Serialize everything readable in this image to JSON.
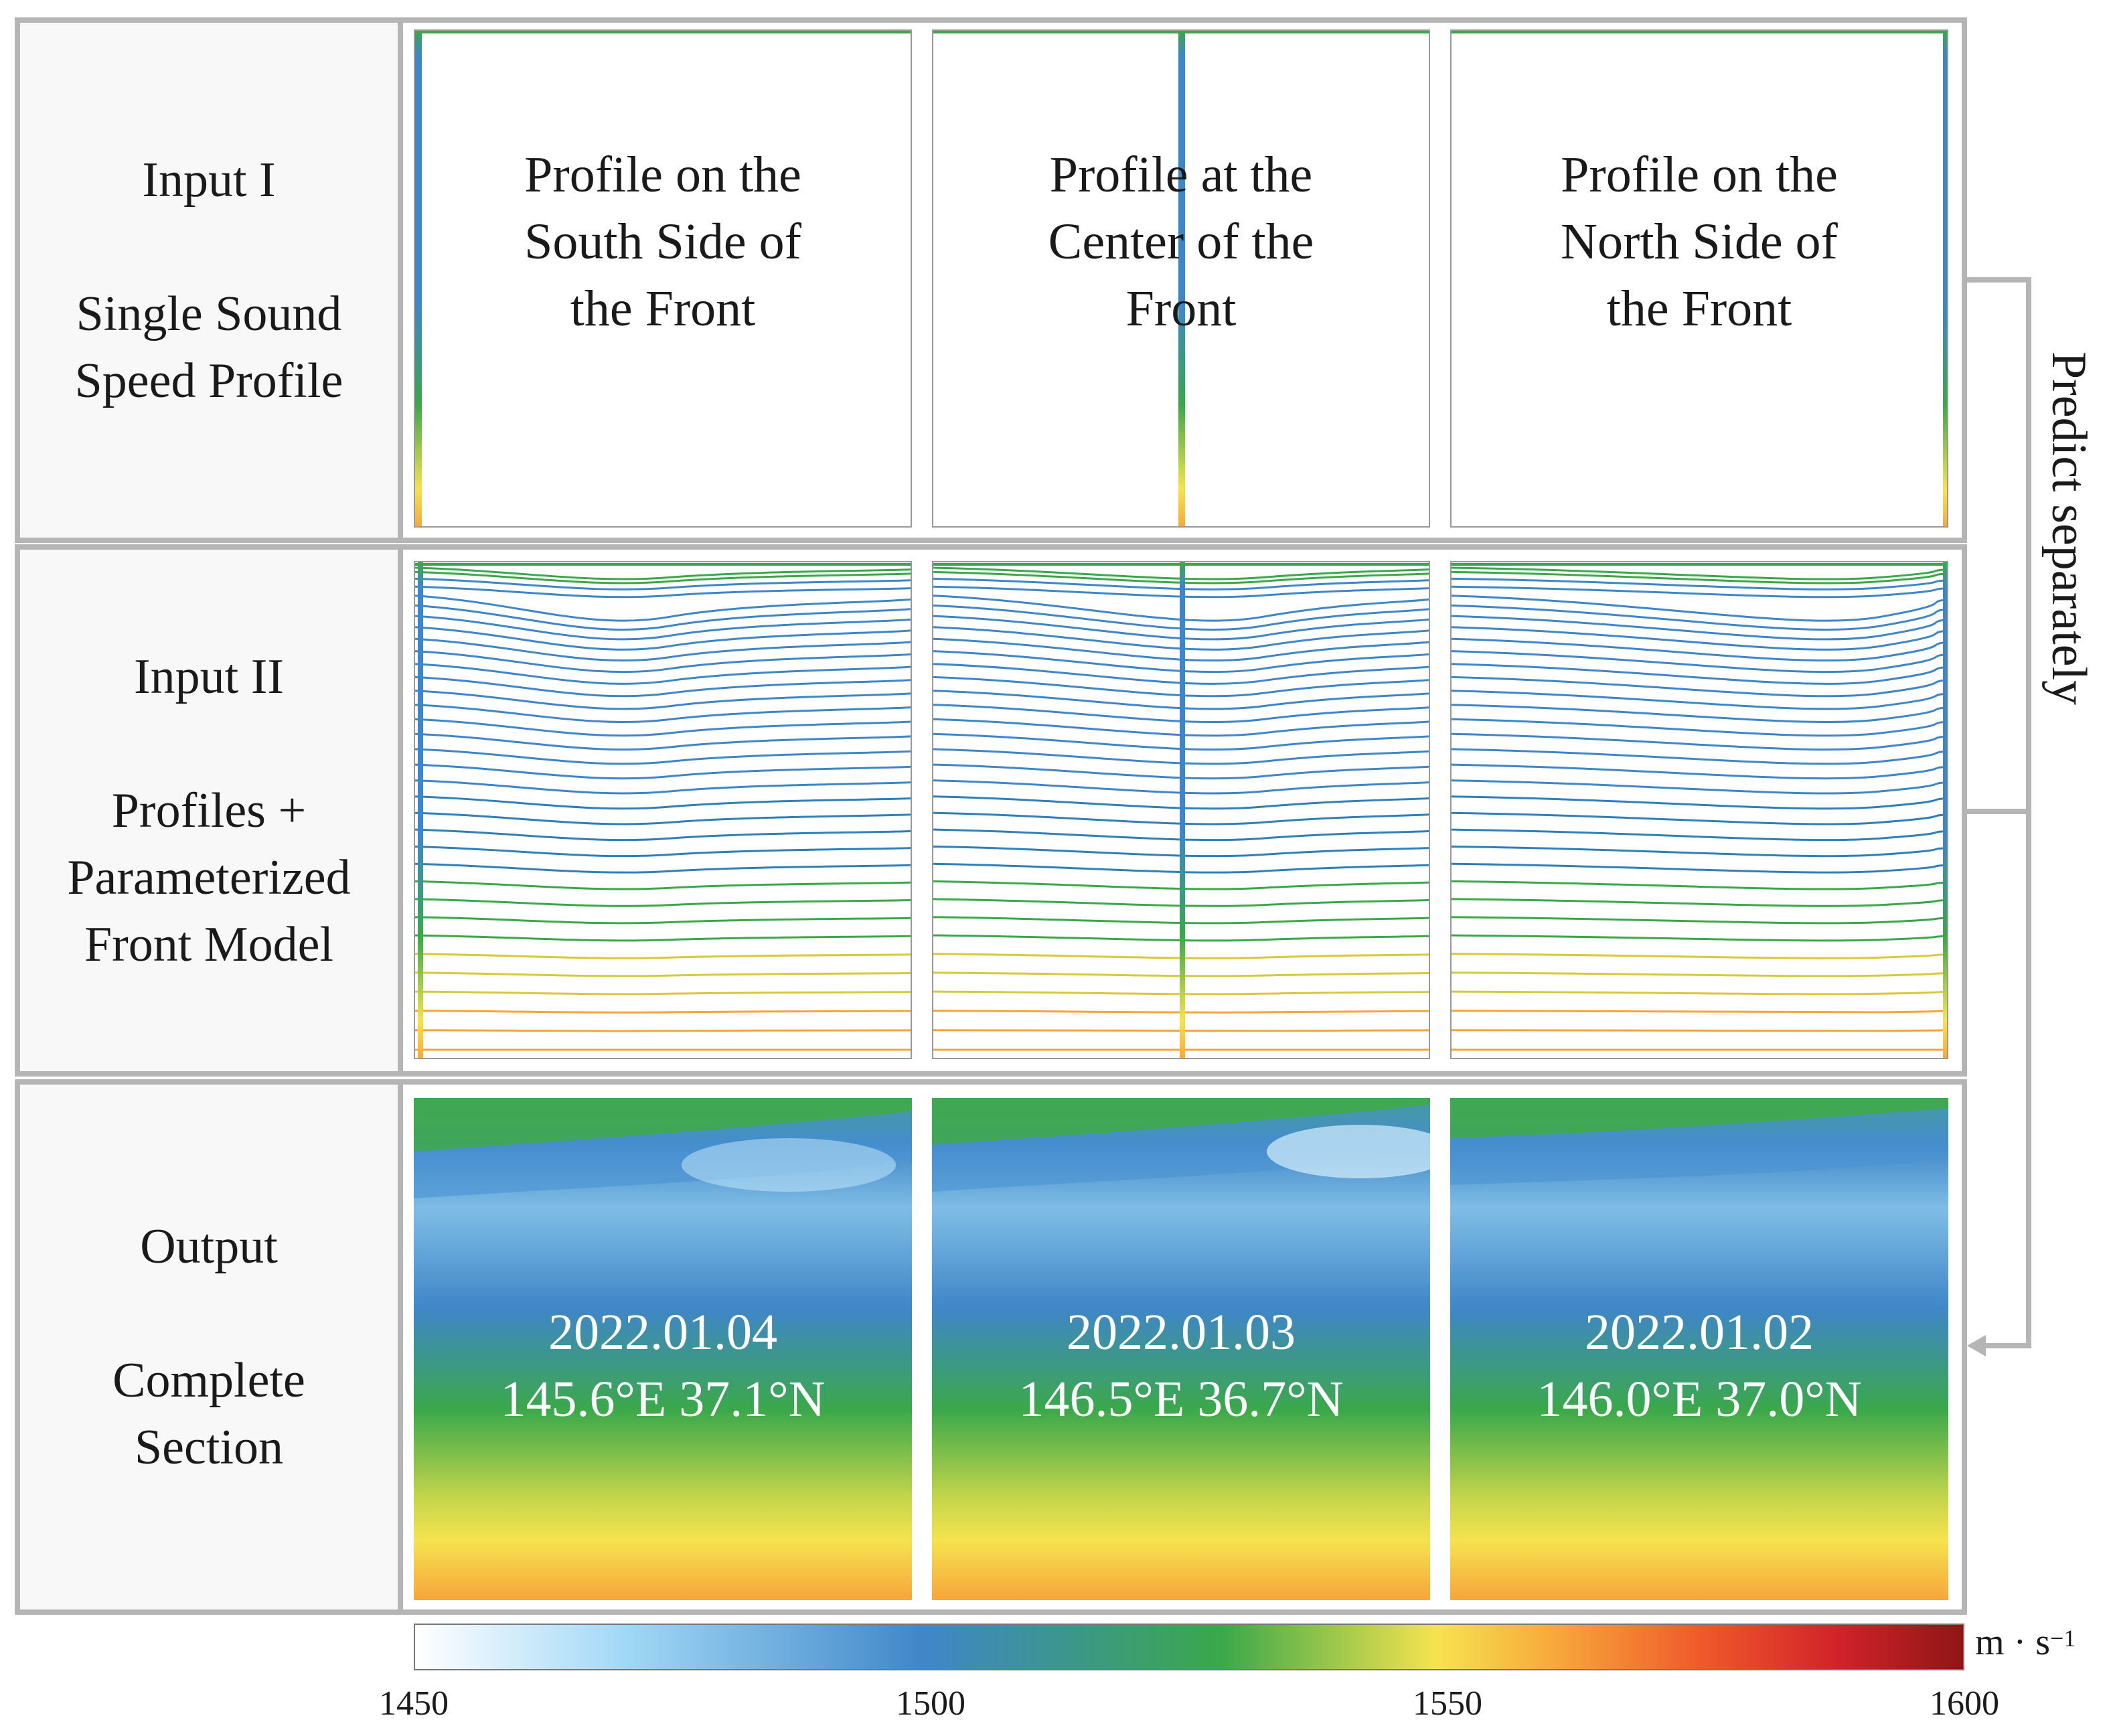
{
  "rows": [
    {
      "title": "Input I",
      "body": "Single Sound\nSpeed Profile"
    },
    {
      "title": "Input II",
      "body": "Profiles +\nParameterized\nFront Model"
    },
    {
      "title": "Output",
      "body": "Complete\nSection"
    }
  ],
  "profiles": [
    {
      "text": "Profile on the\nSouth Side of\nthe Front"
    },
    {
      "text": "Profile at the\nCenter of the\nFront"
    },
    {
      "text": "Profile on the\nNorth Side of\nthe Front"
    }
  ],
  "outputs": [
    {
      "date": "2022.01.04",
      "coords": "145.6°E 37.1°N"
    },
    {
      "date": "2022.01.03",
      "coords": "146.5°E 36.7°N"
    },
    {
      "date": "2022.01.02",
      "coords": "146.0°E 37.0°N"
    }
  ],
  "predict_label": "Predict separately",
  "colorbar": {
    "min": 1450,
    "max": 1600,
    "ticks": [
      "1450",
      "1500",
      "1550",
      "1600"
    ],
    "unit_base": "m · s",
    "unit_exp": "−1"
  },
  "colors": {
    "frame": "#b5b5b5",
    "blue": "#3f86c8",
    "green": "#3aa84a",
    "yellow": "#f6e34e",
    "orange": "#f7a53b"
  }
}
